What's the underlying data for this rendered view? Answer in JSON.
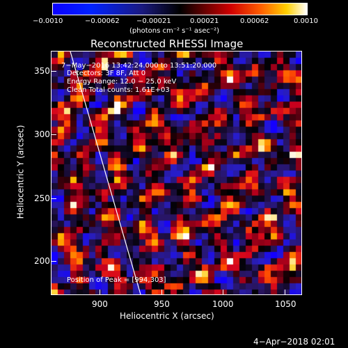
{
  "colorbar": {
    "ticks": [
      "−0.0010",
      "−0.00062",
      "−0.00021",
      "0.00021",
      "0.00062",
      "0.0010"
    ],
    "unit_label": "(photons cm⁻² s⁻¹ asec⁻²)"
  },
  "title": "Reconstructed RHESSI Image",
  "overlay": {
    "time_range": "7−May−2016 13:42:24.000 to 13:51:20.000",
    "detectors": "Detectors: 3F 8F, Att 0",
    "energy_range": "Energy Range: 12.0 − 25.0 keV",
    "clean_counts": "Clean      Total counts: 1.61E+03",
    "position_of_peak": "Position of Peak = [994,303]"
  },
  "axes": {
    "xlabel": "Heliocentric X (arcsec)",
    "ylabel": "Heliocentric Y (arcsec)",
    "x_ticks": [
      "900",
      "950",
      "1000",
      "1050"
    ],
    "y_ticks": [
      "200",
      "250",
      "300",
      "350"
    ],
    "xlim": [
      865,
      1052
    ],
    "ylim": [
      172,
      366
    ]
  },
  "footer_date": "4−Apr−2018 02:01"
}
